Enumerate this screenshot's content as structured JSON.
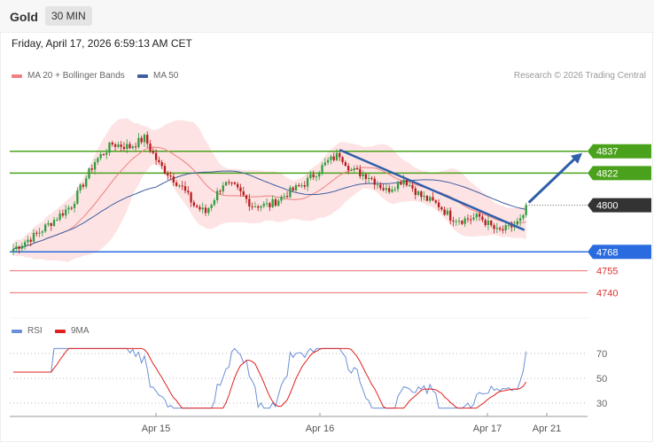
{
  "header": {
    "title": "Gold",
    "interval": "30 MIN",
    "datetime": "Friday, April 17, 2026 6:59:13 AM CET"
  },
  "legend": {
    "ma20": "MA 20 + Bollinger Bands",
    "ma50": "MA 50",
    "credit": "Research © 2026 Trading Central"
  },
  "colors": {
    "ma20": "#f08080",
    "ma50": "#3f5f9f",
    "band_fill": "#fde3e3",
    "candle_up": "#2e9e3f",
    "candle_down": "#b71c1c",
    "resistance": "#4aa21c",
    "pivot": "#2a6be0",
    "support": "#e03030",
    "current": "#333333",
    "trend_arrow": "#2f5faa",
    "rsi": "#6a8fd8",
    "rsi_ma": "#e02020"
  },
  "chart_data": [
    {
      "type": "candlestick",
      "price_range": [
        4725,
        4880
      ],
      "x": [
        "Apr 15",
        "Apr 16",
        "Apr 17",
        "Apr 21"
      ],
      "levels": [
        {
          "label": "4837",
          "value": 4837,
          "kind": "resistance"
        },
        {
          "label": "4822",
          "value": 4822,
          "kind": "resistance"
        },
        {
          "label": "4800",
          "value": 4800,
          "kind": "current"
        },
        {
          "label": "4768",
          "value": 4768,
          "kind": "pivot"
        },
        {
          "label": "4755",
          "value": 4755,
          "kind": "support"
        },
        {
          "label": "4740",
          "value": 4740,
          "kind": "support"
        }
      ],
      "series": [
        {
          "name": "MA 20 + Bollinger Bands",
          "type": "line"
        },
        {
          "name": "MA 50",
          "type": "line"
        }
      ],
      "projection": {
        "from": 4800,
        "to": 4837
      }
    },
    {
      "type": "line",
      "x": [
        "Apr 15",
        "Apr 16",
        "Apr 17",
        "Apr 21"
      ],
      "ylim": [
        25,
        75
      ],
      "yticks": [
        "70",
        "50",
        "30"
      ],
      "series": [
        {
          "name": "RSI"
        },
        {
          "name": "9MA"
        }
      ]
    }
  ],
  "rsi_legend": {
    "rsi": "RSI",
    "ma": "9MA"
  },
  "xaxis": [
    "Apr 15",
    "Apr 16",
    "Apr 17",
    "Apr 21"
  ]
}
